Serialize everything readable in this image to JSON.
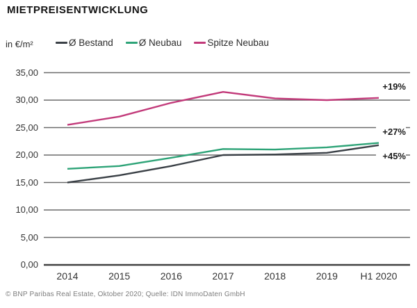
{
  "chart_data": {
    "type": "line",
    "title": "MIETPREISENTWICKLUNG",
    "unit_label": "in €/m²",
    "categories": [
      "2014",
      "2015",
      "2016",
      "2017",
      "2018",
      "2019",
      "H1 2020"
    ],
    "ytick_labels": [
      "35,00",
      "30,00",
      "25,00",
      "20,00",
      "15,00",
      "10,00",
      "5,00",
      "0,00"
    ],
    "ylim": [
      0,
      35
    ],
    "grid": "horizontal-only",
    "legend_position": "top",
    "series": [
      {
        "name": "Ø Bestand",
        "color": "#3a4046",
        "values": [
          15.0,
          16.3,
          18.0,
          20.0,
          20.1,
          20.4,
          21.8
        ],
        "end_annotation": "+45%"
      },
      {
        "name": "Ø Neubau",
        "color": "#2da377",
        "values": [
          17.5,
          18.0,
          19.5,
          21.1,
          21.0,
          21.4,
          22.2
        ],
        "end_annotation": "+27%"
      },
      {
        "name": "Spitze Neubau",
        "color": "#c23a7a",
        "values": [
          25.5,
          27.0,
          29.5,
          31.5,
          30.3,
          30.0,
          30.4
        ],
        "end_annotation": "+19%"
      }
    ],
    "footer": "© BNP Paribas Real Estate, Oktober 2020; Quelle: IDN ImmoDaten GmbH"
  }
}
